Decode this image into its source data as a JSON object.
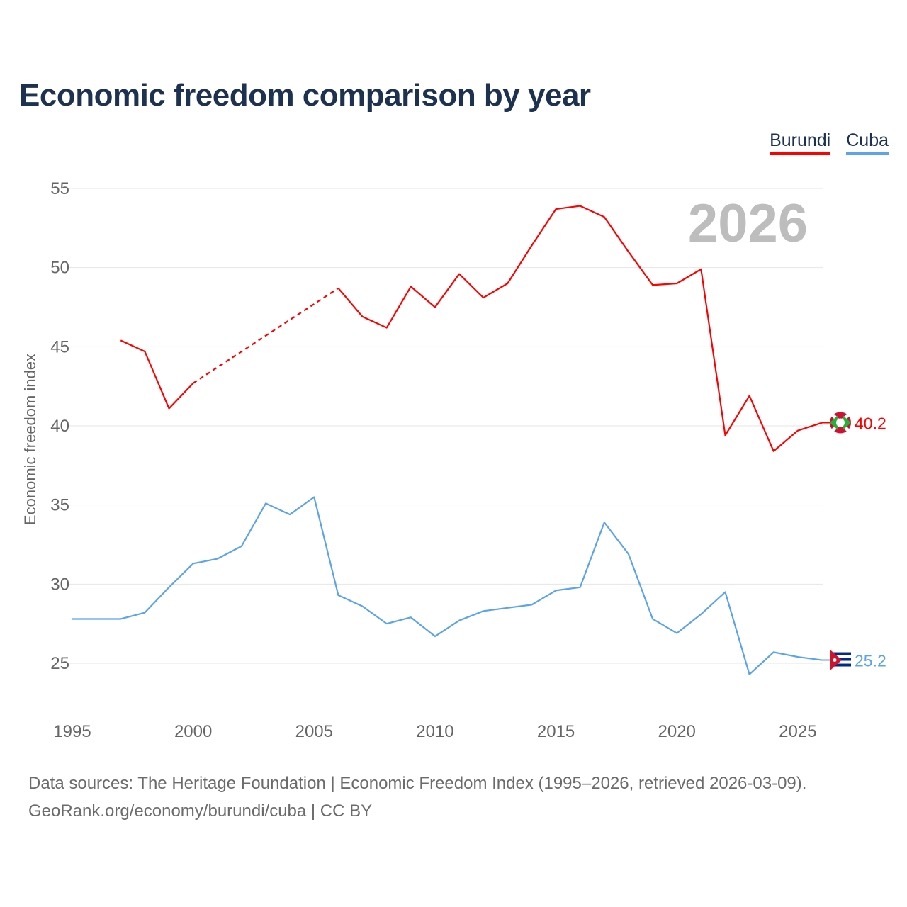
{
  "chart_data": {
    "type": "line",
    "title": "Economic freedom comparison by year",
    "xlabel": "",
    "ylabel": "Economic freedom index",
    "xlim": [
      1995,
      2026
    ],
    "ylim": [
      22,
      57
    ],
    "x_ticks": [
      1995,
      2000,
      2005,
      2010,
      2015,
      2020,
      2025
    ],
    "y_ticks": [
      25,
      30,
      35,
      40,
      45,
      50,
      55
    ],
    "grid": true,
    "legend_position": "top-right",
    "year_watermark": "2026",
    "x": [
      1995,
      1996,
      1997,
      1998,
      1999,
      2000,
      2001,
      2002,
      2003,
      2004,
      2005,
      2006,
      2007,
      2008,
      2009,
      2010,
      2011,
      2012,
      2013,
      2014,
      2015,
      2016,
      2017,
      2018,
      2019,
      2020,
      2021,
      2022,
      2023,
      2024,
      2025,
      2026
    ],
    "series": [
      {
        "name": "Burundi",
        "color": "#ff0000",
        "end_label": "40.2",
        "values": [
          null,
          null,
          45.4,
          44.7,
          41.1,
          42.7,
          null,
          null,
          null,
          null,
          null,
          48.7,
          46.9,
          46.2,
          48.8,
          47.5,
          49.6,
          48.1,
          49.0,
          51.4,
          53.7,
          53.9,
          53.2,
          51.0,
          48.9,
          49.0,
          49.9,
          39.4,
          41.9,
          38.4,
          39.7,
          40.2
        ]
      },
      {
        "name": "Cuba",
        "color": "#5ba3ea",
        "end_label": "25.2",
        "values": [
          27.8,
          27.8,
          27.8,
          28.2,
          29.8,
          31.3,
          31.6,
          32.4,
          35.1,
          34.4,
          35.5,
          29.3,
          28.6,
          27.5,
          27.9,
          26.7,
          27.7,
          28.3,
          28.5,
          28.7,
          29.6,
          29.8,
          33.9,
          31.9,
          27.8,
          26.9,
          28.1,
          29.5,
          24.3,
          25.7,
          25.4,
          25.2
        ]
      }
    ]
  },
  "footer": {
    "line1": "Data sources: The Heritage Foundation | Economic Freedom Index (1995–2026, retrieved 2026-03-09).",
    "line2": "GeoRank.org/economy/burundi/cuba | CC BY"
  }
}
